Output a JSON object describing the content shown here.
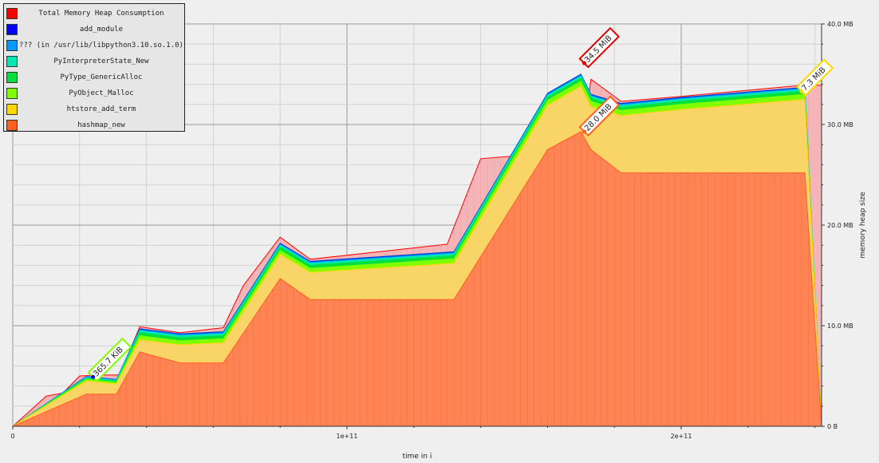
{
  "chart_data": {
    "type": "area",
    "stacked": true,
    "title": "",
    "xlabel": "time in i",
    "ylabel": "memory heap size",
    "xlim": [
      0,
      242000000000.0
    ],
    "ylim": [
      0,
      40
    ],
    "y_unit": "MB",
    "x_ticks": [
      {
        "value": 0,
        "label": "0"
      },
      {
        "value": 100000000000.0,
        "label": "1e+11"
      },
      {
        "value": 200000000000.0,
        "label": "2e+11"
      }
    ],
    "y_ticks": [
      {
        "value": 0,
        "label": "0 B"
      },
      {
        "value": 10,
        "label": "10.0 MB"
      },
      {
        "value": 20,
        "label": "20.0 MB"
      },
      {
        "value": 30,
        "label": "30.0 MB"
      },
      {
        "value": 40,
        "label": "40.0 MB"
      }
    ],
    "grid": true,
    "legend_position": "top-left",
    "x": [
      0,
      22000000000.0,
      31000000000.0,
      38000000000.0,
      50000000000.0,
      63000000000.0,
      80000000000.0,
      89000000000.0,
      132000000000.0,
      160000000000.0,
      170000000000.0,
      173000000000.0,
      182000000000.0,
      200000000000.0,
      237000000000.0,
      242000000000.0
    ],
    "series": [
      {
        "name": "hashmap_new",
        "color": "#ff6020",
        "values": [
          0,
          3.2,
          3.2,
          7.4,
          6.3,
          6.3,
          14.7,
          12.6,
          12.6,
          27.5,
          29.3,
          27.5,
          25.2,
          25.2,
          25.2,
          0
        ]
      },
      {
        "name": "htstore_add_term",
        "color": "#ffd700",
        "values": [
          0,
          1.3,
          1.0,
          1.2,
          1.8,
          2.0,
          2.4,
          2.7,
          3.6,
          4.4,
          4.5,
          4.3,
          5.7,
          6.3,
          7.3,
          0
        ]
      },
      {
        "name": "PyObject_Malloc",
        "color": "#7fff00",
        "values": [
          0,
          0.15,
          0.15,
          0.4,
          0.4,
          0.4,
          0.4,
          0.4,
          0.45,
          0.5,
          0.5,
          0.5,
          0.5,
          0.5,
          0.5,
          0
        ]
      },
      {
        "name": "PyType_GenericAlloc",
        "color": "#00e03c",
        "values": [
          0,
          0.1,
          0.1,
          0.3,
          0.3,
          0.3,
          0.3,
          0.3,
          0.3,
          0.3,
          0.3,
          0.3,
          0.3,
          0.3,
          0.3,
          0
        ]
      },
      {
        "name": "PyInterpreterState_New",
        "color": "#00e8b0",
        "values": [
          0,
          0.1,
          0.1,
          0.2,
          0.2,
          0.2,
          0.2,
          0.2,
          0.2,
          0.2,
          0.2,
          0.2,
          0.2,
          0.2,
          0.2,
          0
        ]
      },
      {
        "name": "??? (in /usr/lib/libpython3.10.so.1.0)",
        "color": "#0099ff",
        "values": [
          0,
          0.05,
          0.05,
          0.1,
          0.1,
          0.1,
          0.1,
          0.1,
          0.1,
          0.1,
          0.1,
          0.1,
          0.1,
          0.1,
          0.1,
          0
        ]
      },
      {
        "name": "add_module",
        "color": "#0000ff",
        "values": [
          0,
          0.05,
          0.05,
          0.1,
          0.1,
          0.1,
          0.1,
          0.1,
          0.1,
          0.1,
          0.1,
          0.1,
          0.1,
          0.1,
          0.1,
          0
        ]
      }
    ],
    "total": {
      "name": "Total Memory Heap Consumption",
      "color": "#ff0000",
      "x": [
        0,
        5000000000.0,
        10000000000.0,
        15000000000.0,
        20000000000.0,
        26000000000.0,
        32000000000.0,
        38000000000.0,
        50000000000.0,
        63000000000.0,
        69000000000.0,
        80000000000.0,
        89000000000.0,
        130000000000.0,
        140000000000.0,
        170000000000.0,
        173000000000.0,
        182000000000.0,
        200000000000.0,
        236000000000.0,
        242000000000.0,
        242000000000.0
      ],
      "values": [
        0,
        1.5,
        3.0,
        3.3,
        5.0,
        5.1,
        5.1,
        9.9,
        9.3,
        9.8,
        14.0,
        18.8,
        16.6,
        18.1,
        26.6,
        27.4,
        34.5,
        32.3,
        32.8,
        33.9,
        33.9,
        0
      ]
    },
    "annotations": [
      {
        "label": "34.5 MiB",
        "x": 171000000000.0,
        "y": 36.1,
        "color": "#e00000",
        "series": "Total Memory Heap Consumption"
      },
      {
        "label": "7.3 MiB",
        "x": 236000000000.0,
        "y": 33.3,
        "color": "#ffd700",
        "series": "htstore_add_term"
      },
      {
        "label": "28.0 MiB",
        "x": 171000000000.0,
        "y": 29.3,
        "color": "#ff6020",
        "series": "hashmap_new"
      },
      {
        "label": "365.7 KiB",
        "x": 24000000000.0,
        "y": 4.9,
        "color": "#7fff00",
        "series": "PyObject_Malloc"
      }
    ]
  }
}
